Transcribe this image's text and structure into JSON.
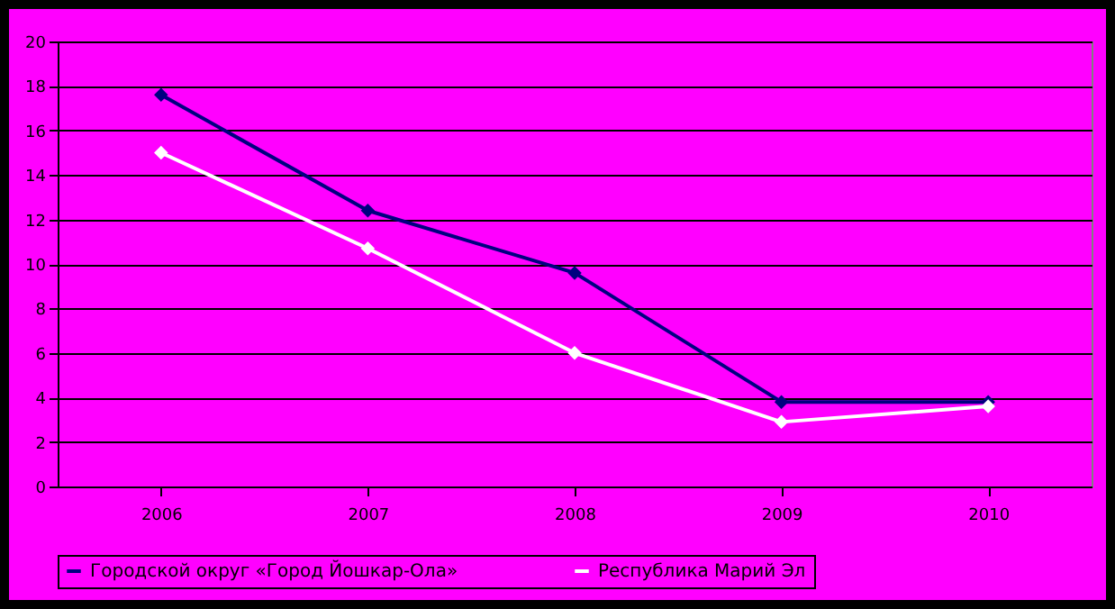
{
  "chart_data": {
    "type": "line",
    "categories": [
      "2006",
      "2007",
      "2008",
      "2009",
      "2010"
    ],
    "series": [
      {
        "name": "Городской округ «Город Йошкар-Ола»",
        "color": "#000080",
        "values": [
          17.6,
          12.4,
          9.6,
          3.8,
          3.8
        ]
      },
      {
        "name": "Республика Марий Эл",
        "color": "#ffffff",
        "values": [
          15.0,
          10.7,
          6.0,
          2.9,
          3.6
        ]
      }
    ],
    "ylim": [
      0,
      20
    ],
    "yticks": [
      0,
      2,
      4,
      6,
      8,
      10,
      12,
      14,
      16,
      18,
      20
    ],
    "grid": "y",
    "legend": "bottom",
    "marker": "diamond",
    "line_style": "solid"
  }
}
